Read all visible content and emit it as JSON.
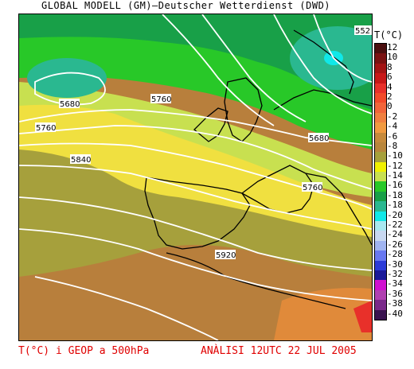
{
  "header": {
    "title": "GLOBAL MODELL (GM)–Deutscher Wetterdienst (DWD)"
  },
  "legend": {
    "title": "T(°C)",
    "items": [
      {
        "label": "12",
        "color": "#4a0f0f"
      },
      {
        "label": "10",
        "color": "#7a1212"
      },
      {
        "label": "8",
        "color": "#a31414"
      },
      {
        "label": "6",
        "color": "#c81818"
      },
      {
        "label": "4",
        "color": "#e8302a"
      },
      {
        "label": "2",
        "color": "#f24a2a"
      },
      {
        "label": "0",
        "color": "#f2653a"
      },
      {
        "label": "-2",
        "color": "#f08040"
      },
      {
        "label": "-4",
        "color": "#f09a40"
      },
      {
        "label": "-6",
        "color": "#c68a3c"
      },
      {
        "label": "-8",
        "color": "#b8863c"
      },
      {
        "label": "-10",
        "color": "#a6a03c"
      },
      {
        "label": "-12",
        "color": "#f0f000"
      },
      {
        "label": "-14",
        "color": "#c8e050"
      },
      {
        "label": "-16",
        "color": "#28c828"
      },
      {
        "label": "-18",
        "color": "#18a048"
      },
      {
        "label": "-18",
        "color": "#2ab890"
      },
      {
        "label": "-20",
        "color": "#10e8e8"
      },
      {
        "label": "-22",
        "color": "#a8e8f0"
      },
      {
        "label": "-24",
        "color": "#c8d8f0"
      },
      {
        "label": "-26",
        "color": "#a0b4f0"
      },
      {
        "label": "-28",
        "color": "#6878f0"
      },
      {
        "label": "-30",
        "color": "#2c3cd8"
      },
      {
        "label": "-32",
        "color": "#1a1a9a"
      },
      {
        "label": "-34",
        "color": "#d010d0"
      },
      {
        "label": "-36",
        "color": "#b040b0"
      },
      {
        "label": "-38",
        "color": "#7a2a8a"
      },
      {
        "label": "-40",
        "color": "#3a1450"
      }
    ]
  },
  "contours": [
    {
      "label": "5680"
    },
    {
      "label": "5760"
    },
    {
      "label": "5760"
    },
    {
      "label": "5840"
    },
    {
      "label": "5680"
    },
    {
      "label": "5760"
    },
    {
      "label": "5920"
    },
    {
      "label": "552"
    }
  ],
  "footer": {
    "left": "T(°C) i GEOP a 500hPa",
    "right": "ANÀLISI 12UTC 22 JUL 2005"
  },
  "colors": {
    "accent": "#e00000",
    "contour": "#ffffff"
  }
}
